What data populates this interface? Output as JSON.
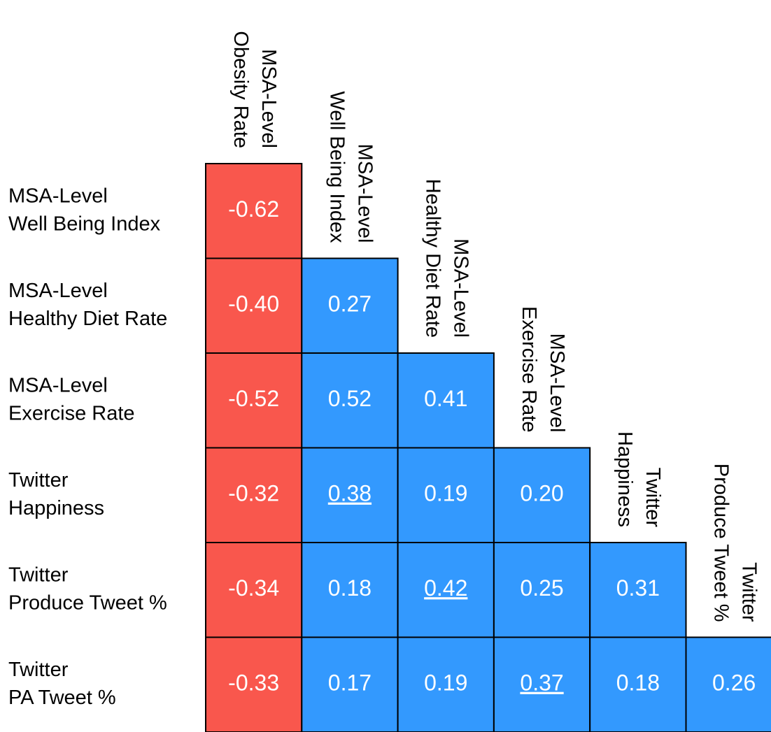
{
  "chart_data": {
    "type": "heatmap",
    "rows": [
      [
        "MSA-Level",
        "Well Being Index"
      ],
      [
        "MSA-Level",
        "Healthy Diet Rate"
      ],
      [
        "MSA-Level",
        "Exercise Rate"
      ],
      [
        "Twitter",
        "Happiness"
      ],
      [
        "Twitter",
        "Produce Tweet %"
      ],
      [
        "Twitter",
        "PA Tweet %"
      ]
    ],
    "columns": [
      [
        "MSA-Level",
        "Obesity Rate"
      ],
      [
        "MSA-Level",
        "Well Being Index"
      ],
      [
        "MSA-Level",
        "Healthy Diet Rate"
      ],
      [
        "MSA-Level",
        "Exercise Rate"
      ],
      [
        "Twitter",
        "Happiness"
      ],
      [
        "Twitter",
        "Produce Tweet %"
      ]
    ],
    "values": [
      [
        -0.62
      ],
      [
        -0.4,
        0.27
      ],
      [
        -0.52,
        0.52,
        0.41
      ],
      [
        -0.32,
        0.38,
        0.19,
        0.2
      ],
      [
        -0.34,
        0.18,
        0.42,
        0.25,
        0.31
      ],
      [
        -0.33,
        0.17,
        0.19,
        0.37,
        0.18,
        0.26
      ]
    ],
    "value_labels": [
      [
        "-0.62"
      ],
      [
        "-0.40",
        "0.27"
      ],
      [
        "-0.52",
        "0.52",
        "0.41"
      ],
      [
        "-0.32",
        "0.38",
        "0.19",
        "0.20"
      ],
      [
        "-0.34",
        "0.18",
        "0.42",
        "0.25",
        "0.31"
      ],
      [
        "-0.33",
        "0.17",
        "0.19",
        "0.37",
        "0.18",
        "0.26"
      ]
    ],
    "negative_color": "#f9574d",
    "positive_color": "#3399fe",
    "underlined": [
      [
        3,
        1
      ],
      [
        4,
        2
      ],
      [
        5,
        3
      ]
    ]
  }
}
